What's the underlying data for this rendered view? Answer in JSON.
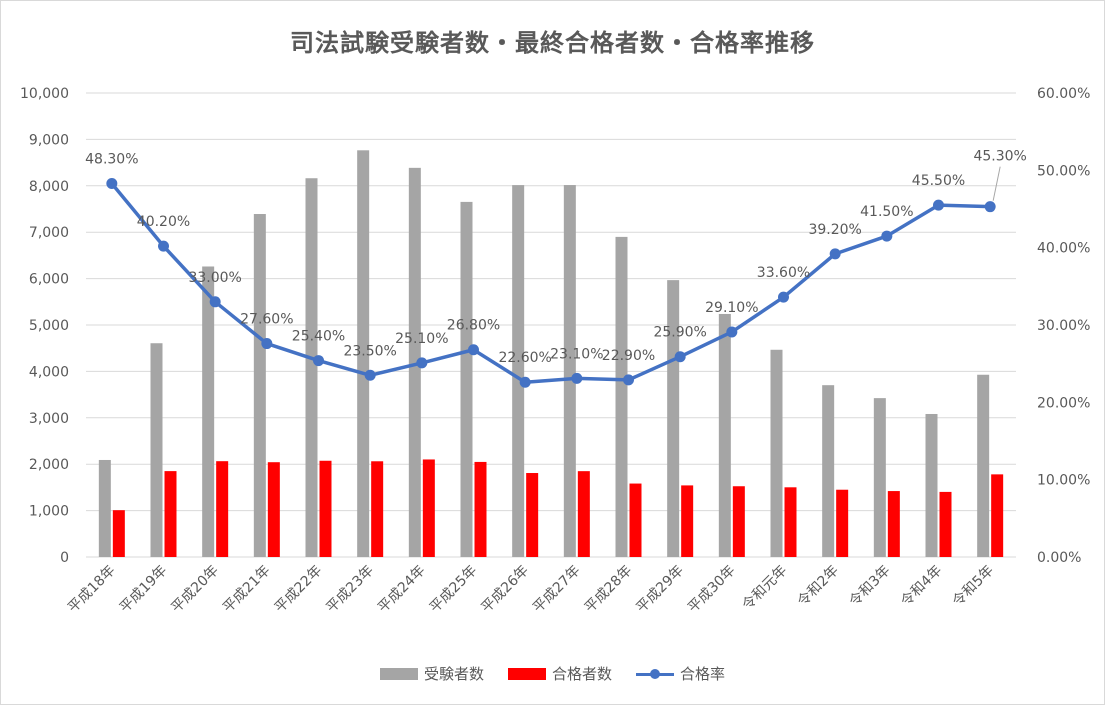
{
  "colors": {
    "examinees": "#a5a5a5",
    "passers": "#ff0000",
    "pass_rate": "#4472c4",
    "text": "#595959",
    "grid": "#d9d9d9"
  },
  "chart_data": {
    "type": "bar",
    "title": "司法試験受験者数・最終合格者数・合格率推移",
    "categories": [
      "平成18年",
      "平成19年",
      "平成20年",
      "平成21年",
      "平成22年",
      "平成23年",
      "平成24年",
      "平成25年",
      "平成26年",
      "平成27年",
      "平成28年",
      "平成29年",
      "平成30年",
      "令和元年",
      "令和2年",
      "令和3年",
      "令和4年",
      "令和5年"
    ],
    "series": [
      {
        "name": "受験者数",
        "type": "bar",
        "axis": "left",
        "values": [
          2091,
          4607,
          6261,
          7392,
          8163,
          8765,
          8387,
          7653,
          8015,
          8016,
          6899,
          5967,
          5238,
          4466,
          3703,
          3424,
          3082,
          3928
        ]
      },
      {
        "name": "合格者数",
        "type": "bar",
        "axis": "left",
        "values": [
          1009,
          1851,
          2065,
          2043,
          2074,
          2063,
          2102,
          2049,
          1810,
          1850,
          1583,
          1543,
          1525,
          1502,
          1450,
          1421,
          1403,
          1781
        ]
      },
      {
        "name": "合格率",
        "type": "line",
        "axis": "right",
        "values": [
          48.3,
          40.2,
          33.0,
          27.6,
          25.4,
          23.5,
          25.1,
          26.8,
          22.6,
          23.1,
          22.9,
          25.9,
          29.1,
          33.6,
          39.2,
          41.5,
          45.5,
          45.3
        ],
        "labels": [
          "48.30%",
          "40.20%",
          "33.00%",
          "27.60%",
          "25.40%",
          "23.50%",
          "25.10%",
          "26.80%",
          "22.60%",
          "23.10%",
          "22.90%",
          "25.90%",
          "29.10%",
          "33.60%",
          "39.20%",
          "41.50%",
          "45.50%",
          "45.30%"
        ]
      }
    ],
    "y_left": {
      "ylim": [
        0,
        10000
      ],
      "ticks": [
        "0",
        "1,000",
        "2,000",
        "3,000",
        "4,000",
        "5,000",
        "6,000",
        "7,000",
        "8,000",
        "9,000",
        "10,000"
      ]
    },
    "y_right": {
      "ylim": [
        0,
        60
      ],
      "ticks": [
        "0.00%",
        "10.00%",
        "20.00%",
        "30.00%",
        "40.00%",
        "50.00%",
        "60.00%"
      ]
    },
    "grid": true,
    "legend": "bottom"
  }
}
